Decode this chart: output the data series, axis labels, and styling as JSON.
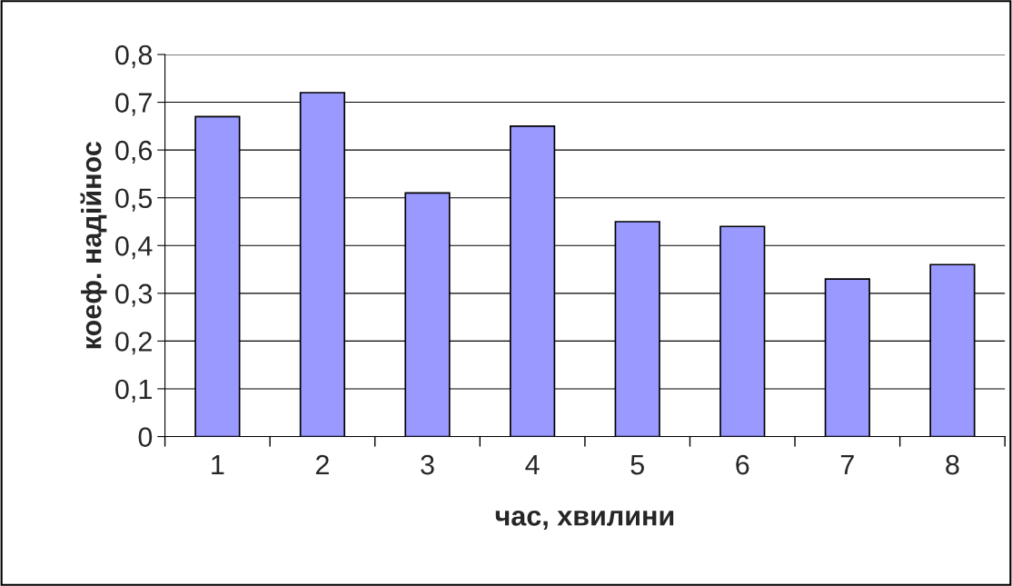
{
  "chart_data": {
    "type": "bar",
    "xlabel": "час, хвилини",
    "ylabel": "коеф. надійнос",
    "categories": [
      "1",
      "2",
      "3",
      "4",
      "5",
      "6",
      "7",
      "8"
    ],
    "values": [
      0.67,
      0.72,
      0.51,
      0.65,
      0.45,
      0.44,
      0.33,
      0.36
    ],
    "color": "#9999ff",
    "ylim": [
      0,
      0.8
    ],
    "yticks": [
      {
        "value": 0,
        "label": "0"
      },
      {
        "value": 0.1,
        "label": "0,1"
      },
      {
        "value": 0.2,
        "label": "0,2"
      },
      {
        "value": 0.3,
        "label": "0,3"
      },
      {
        "value": 0.4,
        "label": "0,4"
      },
      {
        "value": 0.5,
        "label": "0,5"
      },
      {
        "value": 0.6,
        "label": "0,6"
      },
      {
        "value": 0.7,
        "label": "0,7"
      },
      {
        "value": 0.8,
        "label": "0,8"
      }
    ],
    "grid": "y",
    "legend": false
  }
}
